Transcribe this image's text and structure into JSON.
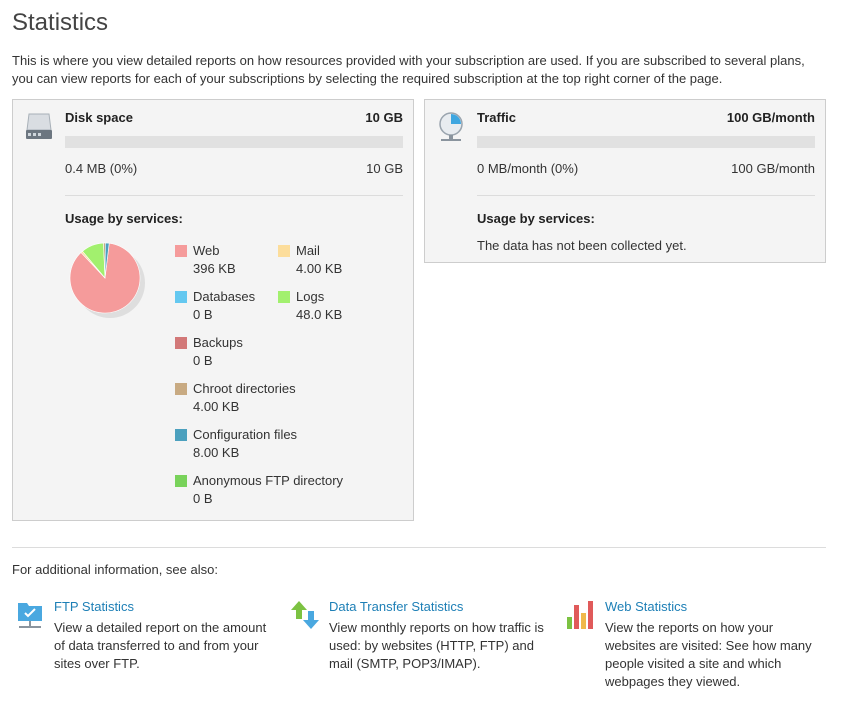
{
  "page": {
    "title": "Statistics",
    "intro": "This is where you view detailed reports on how resources provided with your subscription are used. If you are subscribed to several plans, you can view reports for each of your subscriptions by selecting the required subscription at the top right corner of the page."
  },
  "disk": {
    "name": "Disk space",
    "total": "10 GB",
    "used": "0.4 MB (0%)",
    "max": "10 GB",
    "usage_fraction": 0.0,
    "usage_title": "Usage by services:",
    "services": [
      {
        "label": "Web",
        "value": "396 KB",
        "color": "#f59b9b"
      },
      {
        "label": "Mail",
        "value": "4.00 KB",
        "color": "#fcdd9b"
      },
      {
        "label": "Databases",
        "value": "0 B",
        "color": "#64c8f0"
      },
      {
        "label": "Logs",
        "value": "48.0 KB",
        "color": "#a2f06e"
      },
      {
        "label": "Backups",
        "value": "0 B",
        "color": "#d27878"
      },
      {
        "label": "Chroot directories",
        "value": "4.00 KB",
        "color": "#c8aa82"
      },
      {
        "label": "Configuration files",
        "value": "8.00 KB",
        "color": "#4ba0be"
      },
      {
        "label": "Anonymous FTP directory",
        "value": "0 B",
        "color": "#78d25a"
      }
    ],
    "chart_data": {
      "type": "pie",
      "categories": [
        "Web",
        "Mail",
        "Databases",
        "Logs",
        "Backups",
        "Chroot directories",
        "Configuration files",
        "Anonymous FTP directory"
      ],
      "values": [
        396,
        4,
        0,
        48,
        0,
        4,
        8,
        0
      ]
    }
  },
  "traffic": {
    "name": "Traffic",
    "total": "100 GB/month",
    "used": "0 MB/month (0%)",
    "max": "100 GB/month",
    "usage_fraction": 0.0,
    "usage_title": "Usage by services:",
    "no_data": "The data has not been collected yet."
  },
  "see_also": {
    "label": "For additional information, see also:",
    "links": [
      {
        "title": "FTP Statistics",
        "desc": "View a detailed report on the amount of data transferred to and from your sites over FTP.",
        "icon": "ftp-icon"
      },
      {
        "title": "Data Transfer Statistics",
        "desc": "View monthly reports on how traffic is used: by websites (HTTP, FTP) and mail (SMTP, POP3/IMAP).",
        "icon": "data-transfer-icon"
      },
      {
        "title": "Web Statistics",
        "desc": "View the reports on how your websites are visited: See how many people visited a site and which webpages they viewed.",
        "icon": "web-stats-icon"
      }
    ]
  }
}
